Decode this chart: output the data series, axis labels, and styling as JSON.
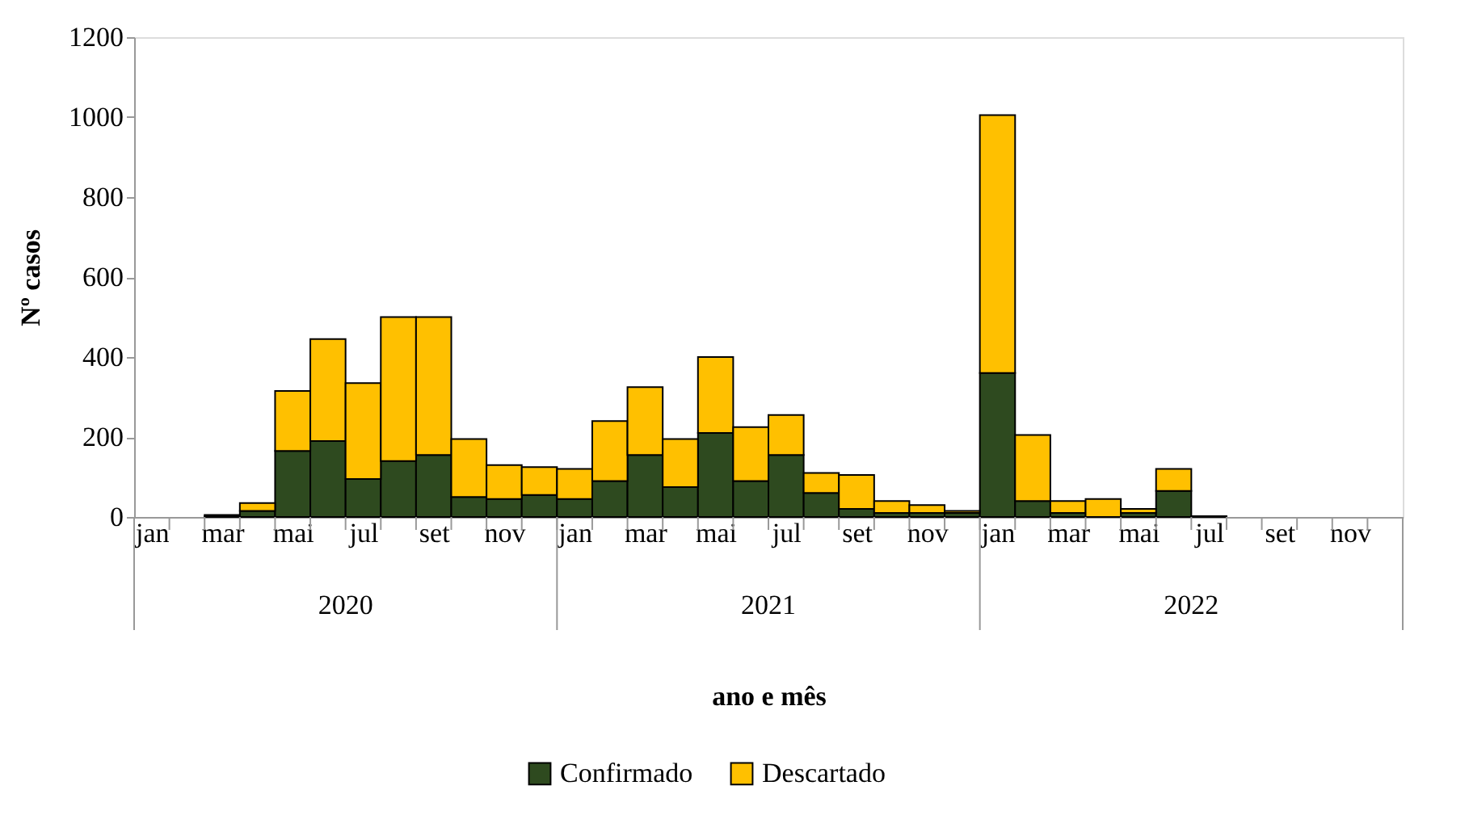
{
  "chart_data": {
    "type": "bar",
    "stacked": true,
    "xlabel": "ano e mês",
    "ylabel": "Nº casos",
    "categories": [
      "jan",
      null,
      "mar",
      null,
      "mai",
      null,
      "jul",
      null,
      "set",
      null,
      "nov",
      null,
      "jan",
      null,
      "mar",
      null,
      "mai",
      null,
      "jul",
      null,
      "set",
      null,
      "nov",
      null,
      "jan",
      null,
      "mar",
      null,
      "mai",
      null,
      "jul",
      null,
      "set",
      null,
      "nov",
      null
    ],
    "series": [
      {
        "name": "Confirmado",
        "color": "#2e4a1f",
        "values": [
          0,
          0,
          2,
          15,
          165,
          190,
          95,
          140,
          155,
          50,
          45,
          55,
          45,
          90,
          155,
          75,
          210,
          90,
          155,
          60,
          20,
          10,
          10,
          10,
          360,
          40,
          10,
          0,
          10,
          65,
          2,
          0,
          0,
          0,
          0,
          0
        ]
      },
      {
        "name": "Descartado",
        "color": "#ffc000",
        "values": [
          0,
          0,
          3,
          20,
          150,
          255,
          240,
          360,
          345,
          145,
          85,
          70,
          75,
          150,
          170,
          120,
          190,
          135,
          100,
          50,
          85,
          30,
          20,
          5,
          645,
          165,
          30,
          45,
          10,
          55,
          0,
          0,
          0,
          0,
          0,
          0
        ]
      }
    ],
    "annotations": [
      "2020",
      "2021",
      "2022"
    ],
    "ylim": [
      0,
      1200
    ],
    "yticks": [
      0,
      200,
      400,
      600,
      800,
      1000,
      1200
    ],
    "grid": false,
    "legend": "bottom"
  }
}
